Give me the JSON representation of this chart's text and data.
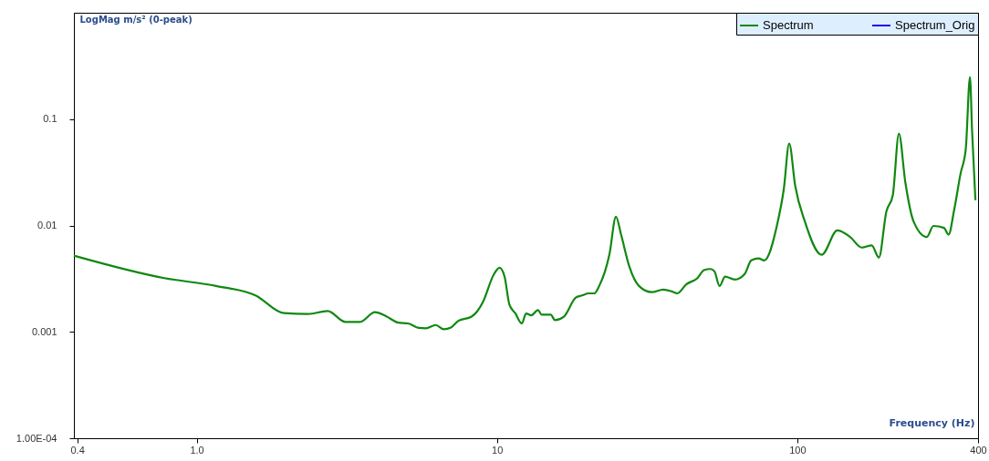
{
  "chart_data": {
    "type": "line",
    "xlabel": "Frequency (Hz)",
    "ylabel": "LogMag m/s² (0-peak)",
    "x": [
      0.39,
      0.78,
      1.16,
      1.57,
      1.95,
      2.35,
      2.73,
      3.13,
      3.5,
      3.92,
      4.28,
      4.69,
      5.06,
      5.49,
      5.8,
      6.25,
      6.65,
      7.03,
      7.44,
      8.23,
      8.58,
      8.97,
      9.78,
      10.2,
      10.6,
      11.0,
      11.5,
      12.1,
      12.5,
      13.0,
      13.7,
      14.1,
      15.1,
      15.6,
      16.7,
      18.3,
      19.2,
      20.2,
      21.1,
      21.9,
      23.7,
      24.9,
      25.9,
      27.6,
      29.7,
      32.8,
      35.8,
      38.2,
      39.8,
      42.7,
      46.5,
      48.9,
      51.4,
      53,
      55.1,
      57.5,
      62,
      66.8,
      70.3,
      74.4,
      77.6,
      85.7,
      90.2,
      94,
      98.4,
      106,
      120.6,
      136,
      150,
      164,
      177,
      187,
      198,
      208,
      218,
      229,
      244,
      270,
      284,
      308,
      319,
      333,
      350,
      364,
      376,
      382,
      392
    ],
    "series": [
      {
        "name": "Spectrum",
        "color": "#118811",
        "values": [
          0.0052,
          0.0032,
          0.0027,
          0.0022,
          0.0015,
          0.00147,
          0.00157,
          0.00124,
          0.00124,
          0.00153,
          0.0014,
          0.00122,
          0.0012,
          0.00109,
          0.00108,
          0.00116,
          0.00106,
          0.0011,
          0.00127,
          0.00139,
          0.00155,
          0.0019,
          0.0035,
          0.004,
          0.0033,
          0.0018,
          0.0015,
          0.0012,
          0.00149,
          0.00143,
          0.0016,
          0.00145,
          0.00145,
          0.00129,
          0.00139,
          0.0021,
          0.0022,
          0.0023,
          0.0023,
          0.0027,
          0.0054,
          0.0121,
          0.0082,
          0.0041,
          0.0027,
          0.00236,
          0.0025,
          0.0024,
          0.0023,
          0.0028,
          0.0032,
          0.0038,
          0.0039,
          0.0037,
          0.0027,
          0.0033,
          0.0031,
          0.0035,
          0.0047,
          0.0049,
          0.0047,
          0.0102,
          0.022,
          0.059,
          0.0237,
          0.0109,
          0.0053,
          0.009,
          0.0078,
          0.0062,
          0.0065,
          0.005,
          0.0135,
          0.0192,
          0.073,
          0.0255,
          0.0109,
          0.0078,
          0.0099,
          0.0095,
          0.0082,
          0.014,
          0.031,
          0.052,
          0.248,
          0.079,
          0.0173
        ]
      },
      {
        "name": "Spectrum_Orig",
        "color": "#1010ee",
        "values": [
          null,
          null,
          null,
          null,
          null,
          null,
          null,
          null,
          null,
          null,
          null,
          null,
          null,
          null,
          null,
          null,
          null,
          null,
          null,
          null,
          null,
          null,
          null,
          null,
          null,
          null,
          null,
          null,
          null,
          null,
          null,
          null,
          null,
          null,
          null,
          null,
          null,
          null,
          null,
          null,
          null,
          null,
          null,
          null,
          null,
          null,
          null,
          null,
          null,
          null,
          null,
          null,
          null,
          null,
          null,
          null,
          null,
          null,
          null,
          null,
          null,
          null,
          null,
          null,
          null,
          null,
          null,
          null,
          null,
          null,
          null,
          null,
          null,
          null,
          null,
          null,
          null,
          null,
          null,
          null,
          null,
          null,
          null,
          null,
          null,
          null,
          null
        ]
      }
    ],
    "xlim": [
      0.39,
      400
    ],
    "ylim": [
      0.0001,
      1
    ],
    "xticks": [
      {
        "value": 0.4,
        "label": "0.4"
      },
      {
        "value": 1,
        "label": "1.0"
      },
      10,
      100,
      400
    ],
    "yticks": [
      {
        "value": 0.0001,
        "label": "1.00E-04"
      },
      0.001,
      0.01,
      0.1
    ],
    "log": "xy",
    "grid": false,
    "legend": "top right"
  }
}
